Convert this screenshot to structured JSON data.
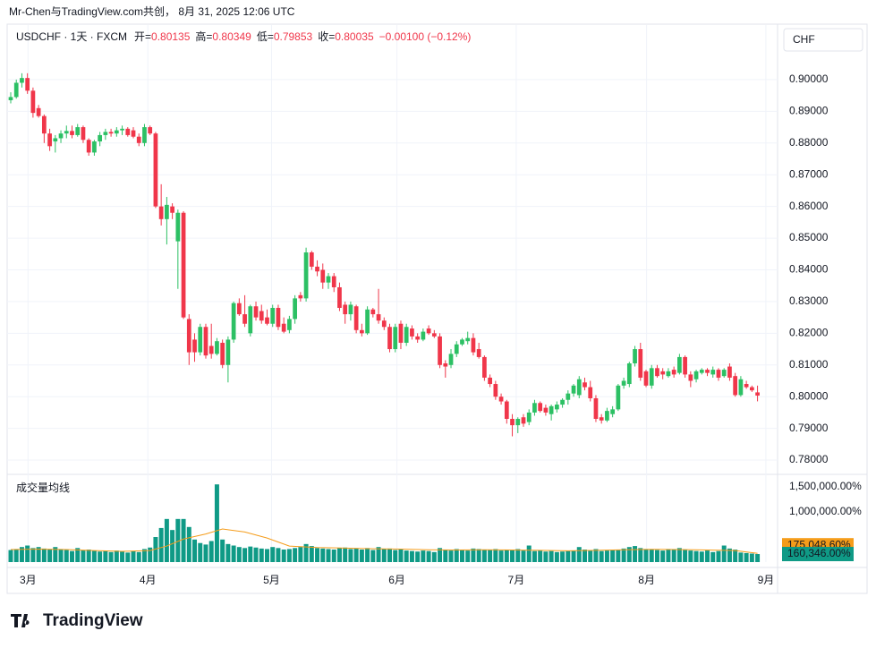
{
  "header": {
    "attribution": "Mr-Chen与TradingView.com共创， 8月 31, 2025 12:06 UTC",
    "logo": "TradingView"
  },
  "chart_data": {
    "type": "candlestick",
    "symbol": "USDCHF · 1天 · FXCM",
    "ohlc_labels": [
      "开=",
      "高=",
      "低=",
      "收="
    ],
    "change": "−0.00100 (−0.12%)",
    "currency": "CHF",
    "volume_title": "成交量均线",
    "up_color": "#2cc064",
    "down_color": "#f0364a",
    "volume_color": "#0f9a86",
    "ma_color": "#f59c1a",
    "ylim": [
      0.7755,
      0.9172
    ],
    "yticks": [
      {
        "value": 0.9,
        "label": "0.90000"
      },
      {
        "value": 0.89,
        "label": "0.89000"
      },
      {
        "value": 0.88,
        "label": "0.88000"
      },
      {
        "value": 0.87,
        "label": "0.87000"
      },
      {
        "value": 0.86,
        "label": "0.86000"
      },
      {
        "value": 0.85,
        "label": "0.85000"
      },
      {
        "value": 0.84,
        "label": "0.84000"
      },
      {
        "value": 0.83,
        "label": "0.83000"
      },
      {
        "value": 0.82,
        "label": "0.82000"
      },
      {
        "value": 0.81,
        "label": "0.81000"
      },
      {
        "value": 0.8,
        "label": "0.80000"
      },
      {
        "value": 0.79,
        "label": "0.79000"
      },
      {
        "value": 0.78,
        "label": "0.78000"
      }
    ],
    "xlim": [
      -0.64,
      137.6
    ],
    "xticks": [
      {
        "value": 3.1,
        "label": "3月"
      },
      {
        "value": 24.6,
        "label": "4月"
      },
      {
        "value": 46.8,
        "label": "5月"
      },
      {
        "value": 69.3,
        "label": "6月"
      },
      {
        "value": 90.7,
        "label": "7月"
      },
      {
        "value": 114.1,
        "label": "8月"
      },
      {
        "value": 135.5,
        "label": "9月"
      }
    ],
    "y2lim": [
      0,
      1750000
    ],
    "y2ticks": [
      {
        "value": 1500000,
        "label": "1,500,000.00%"
      },
      {
        "value": 1000000,
        "label": "1,000,000.00%"
      }
    ],
    "series": [
      {
        "name": "USDCHF",
        "values": [
          [
            0.8935,
            0.896,
            0.8925,
            0.8945
          ],
          [
            0.8945,
            0.9,
            0.894,
            0.899
          ],
          [
            0.899,
            0.902,
            0.8975,
            0.9005
          ],
          [
            0.9005,
            0.902,
            0.8955,
            0.8965
          ],
          [
            0.8965,
            0.8975,
            0.888,
            0.8895
          ],
          [
            0.891,
            0.892,
            0.888,
            0.8885
          ],
          [
            0.8885,
            0.889,
            0.88,
            0.883
          ],
          [
            0.883,
            0.8845,
            0.8775,
            0.879
          ],
          [
            0.8805,
            0.8825,
            0.877,
            0.8815
          ],
          [
            0.8815,
            0.884,
            0.88,
            0.883
          ],
          [
            0.883,
            0.8855,
            0.8815,
            0.8838
          ],
          [
            0.8838,
            0.8855,
            0.8815,
            0.8825
          ],
          [
            0.8825,
            0.886,
            0.882,
            0.885
          ],
          [
            0.885,
            0.8855,
            0.88,
            0.881
          ],
          [
            0.881,
            0.8815,
            0.876,
            0.877
          ],
          [
            0.877,
            0.881,
            0.876,
            0.8805
          ],
          [
            0.8805,
            0.8835,
            0.879,
            0.8825
          ],
          [
            0.8825,
            0.8845,
            0.881,
            0.8835
          ],
          [
            0.8835,
            0.8845,
            0.882,
            0.883
          ],
          [
            0.883,
            0.885,
            0.882,
            0.884
          ],
          [
            0.884,
            0.8855,
            0.8825,
            0.8845
          ],
          [
            0.8845,
            0.885,
            0.882,
            0.8825
          ],
          [
            0.884,
            0.885,
            0.8815,
            0.882
          ],
          [
            0.882,
            0.883,
            0.879,
            0.88
          ],
          [
            0.88,
            0.886,
            0.879,
            0.885
          ],
          [
            0.885,
            0.8855,
            0.8825,
            0.883
          ],
          [
            0.883,
            0.8835,
            0.8595,
            0.86
          ],
          [
            0.86,
            0.867,
            0.854,
            0.856
          ],
          [
            0.856,
            0.863,
            0.848,
            0.8605
          ],
          [
            0.86,
            0.861,
            0.856,
            0.858
          ],
          [
            0.849,
            0.859,
            0.834,
            0.858
          ],
          [
            0.858,
            0.8585,
            0.8245,
            0.825
          ],
          [
            0.8245,
            0.826,
            0.81,
            0.814
          ],
          [
            0.818,
            0.82,
            0.811,
            0.814
          ],
          [
            0.814,
            0.823,
            0.813,
            0.822
          ],
          [
            0.822,
            0.823,
            0.812,
            0.813
          ],
          [
            0.816,
            0.823,
            0.812,
            0.8135
          ],
          [
            0.8135,
            0.8185,
            0.813,
            0.8175
          ],
          [
            0.817,
            0.818,
            0.809,
            0.81
          ],
          [
            0.81,
            0.819,
            0.8045,
            0.818
          ],
          [
            0.818,
            0.83,
            0.817,
            0.8295
          ],
          [
            0.8295,
            0.831,
            0.8255,
            0.826
          ],
          [
            0.826,
            0.832,
            0.822,
            0.823
          ],
          [
            0.82,
            0.829,
            0.819,
            0.8285
          ],
          [
            0.8285,
            0.83,
            0.824,
            0.825
          ],
          [
            0.827,
            0.829,
            0.823,
            0.824
          ],
          [
            0.825,
            0.8275,
            0.8225,
            0.823
          ],
          [
            0.823,
            0.829,
            0.822,
            0.828
          ],
          [
            0.828,
            0.829,
            0.821,
            0.822
          ],
          [
            0.823,
            0.825,
            0.82,
            0.8205
          ],
          [
            0.821,
            0.8255,
            0.82,
            0.8245
          ],
          [
            0.8245,
            0.832,
            0.823,
            0.831
          ],
          [
            0.832,
            0.833,
            0.83,
            0.831
          ],
          [
            0.831,
            0.847,
            0.83,
            0.8455
          ],
          [
            0.8455,
            0.846,
            0.84,
            0.841
          ],
          [
            0.841,
            0.843,
            0.838,
            0.8395
          ],
          [
            0.84,
            0.842,
            0.834,
            0.836
          ],
          [
            0.836,
            0.839,
            0.834,
            0.838
          ],
          [
            0.838,
            0.839,
            0.833,
            0.8345
          ],
          [
            0.8345,
            0.836,
            0.827,
            0.828
          ],
          [
            0.829,
            0.83,
            0.823,
            0.826
          ],
          [
            0.826,
            0.83,
            0.824,
            0.829
          ],
          [
            0.8285,
            0.829,
            0.82,
            0.821
          ],
          [
            0.821,
            0.823,
            0.819,
            0.82
          ],
          [
            0.82,
            0.8285,
            0.8195,
            0.8275
          ],
          [
            0.8275,
            0.828,
            0.825,
            0.826
          ],
          [
            0.826,
            0.834,
            0.823,
            0.824
          ],
          [
            0.824,
            0.825,
            0.821,
            0.822
          ],
          [
            0.822,
            0.823,
            0.814,
            0.815
          ],
          [
            0.815,
            0.823,
            0.814,
            0.822
          ],
          [
            0.823,
            0.824,
            0.815,
            0.817
          ],
          [
            0.817,
            0.823,
            0.816,
            0.822
          ],
          [
            0.8215,
            0.8225,
            0.818,
            0.819
          ],
          [
            0.819,
            0.82,
            0.817,
            0.818
          ],
          [
            0.818,
            0.8215,
            0.8175,
            0.8205
          ],
          [
            0.8215,
            0.8225,
            0.8195,
            0.82
          ],
          [
            0.82,
            0.821,
            0.8185,
            0.819
          ],
          [
            0.819,
            0.82,
            0.809,
            0.81
          ],
          [
            0.8105,
            0.8115,
            0.806,
            0.8095
          ],
          [
            0.81,
            0.815,
            0.809,
            0.8135
          ],
          [
            0.8135,
            0.8175,
            0.8125,
            0.8165
          ],
          [
            0.8165,
            0.8185,
            0.816,
            0.818
          ],
          [
            0.8175,
            0.8205,
            0.8165,
            0.8185
          ],
          [
            0.8185,
            0.82,
            0.813,
            0.814
          ],
          [
            0.815,
            0.817,
            0.812,
            0.8125
          ],
          [
            0.8125,
            0.813,
            0.805,
            0.806
          ],
          [
            0.806,
            0.807,
            0.803,
            0.804
          ],
          [
            0.804,
            0.805,
            0.799,
            0.8
          ],
          [
            0.8,
            0.801,
            0.7975,
            0.7985
          ],
          [
            0.7985,
            0.799,
            0.7915,
            0.793
          ],
          [
            0.793,
            0.7945,
            0.7875,
            0.791
          ],
          [
            0.791,
            0.7935,
            0.7885,
            0.793
          ],
          [
            0.7935,
            0.7945,
            0.7905,
            0.7915
          ],
          [
            0.792,
            0.796,
            0.791,
            0.795
          ],
          [
            0.795,
            0.799,
            0.794,
            0.798
          ],
          [
            0.798,
            0.7985,
            0.795,
            0.7955
          ],
          [
            0.7965,
            0.7975,
            0.794,
            0.795
          ],
          [
            0.7945,
            0.7975,
            0.7925,
            0.797
          ],
          [
            0.796,
            0.7985,
            0.795,
            0.7975
          ],
          [
            0.7975,
            0.7995,
            0.7965,
            0.799
          ],
          [
            0.799,
            0.802,
            0.7975,
            0.801
          ],
          [
            0.801,
            0.804,
            0.8,
            0.8035
          ],
          [
            0.8005,
            0.8065,
            0.7995,
            0.8055
          ],
          [
            0.8045,
            0.806,
            0.802,
            0.803
          ],
          [
            0.803,
            0.805,
            0.7985,
            0.7995
          ],
          [
            0.7995,
            0.8005,
            0.792,
            0.793
          ],
          [
            0.7935,
            0.7945,
            0.7915,
            0.7925
          ],
          [
            0.7925,
            0.7965,
            0.792,
            0.7955
          ],
          [
            0.7945,
            0.797,
            0.7935,
            0.796
          ],
          [
            0.796,
            0.804,
            0.7955,
            0.8035
          ],
          [
            0.8035,
            0.806,
            0.8025,
            0.805
          ],
          [
            0.804,
            0.811,
            0.803,
            0.8105
          ],
          [
            0.8105,
            0.816,
            0.8095,
            0.815
          ],
          [
            0.815,
            0.817,
            0.805,
            0.806
          ],
          [
            0.808,
            0.8085,
            0.803,
            0.8035
          ],
          [
            0.8035,
            0.81,
            0.8025,
            0.809
          ],
          [
            0.809,
            0.81,
            0.806,
            0.8065
          ],
          [
            0.808,
            0.809,
            0.8055,
            0.807
          ],
          [
            0.8065,
            0.809,
            0.806,
            0.808
          ],
          [
            0.8085,
            0.8095,
            0.806,
            0.807
          ],
          [
            0.8075,
            0.8135,
            0.807,
            0.8125
          ],
          [
            0.8125,
            0.813,
            0.806,
            0.807
          ],
          [
            0.807,
            0.808,
            0.803,
            0.805
          ],
          [
            0.8055,
            0.8085,
            0.8045,
            0.808
          ],
          [
            0.8075,
            0.809,
            0.807,
            0.8085
          ],
          [
            0.8085,
            0.809,
            0.8065,
            0.8075
          ],
          [
            0.807,
            0.8095,
            0.806,
            0.8085
          ],
          [
            0.8085,
            0.809,
            0.805,
            0.806
          ],
          [
            0.8065,
            0.809,
            0.806,
            0.8085
          ],
          [
            0.8095,
            0.8105,
            0.805,
            0.806
          ],
          [
            0.8065,
            0.8075,
            0.8,
            0.8005
          ],
          [
            0.8005,
            0.8065,
            0.8,
            0.8055
          ],
          [
            0.804,
            0.805,
            0.8025,
            0.803
          ],
          [
            0.803,
            0.8035,
            0.8015,
            0.802
          ],
          [
            0.80135,
            0.80349,
            0.79853,
            0.80035
          ]
        ]
      },
      {
        "name": "volume",
        "axis": "y2",
        "last_label": "160,346.00%",
        "values": [
          240000,
          260000,
          300000,
          330000,
          280000,
          300000,
          270000,
          250000,
          300000,
          260000,
          240000,
          220000,
          280000,
          240000,
          250000,
          230000,
          210000,
          220000,
          200000,
          230000,
          210000,
          190000,
          220000,
          200000,
          260000,
          290000,
          500000,
          680000,
          860000,
          640000,
          860000,
          860000,
          700000,
          450000,
          380000,
          350000,
          420000,
          1550000,
          450000,
          360000,
          330000,
          300000,
          280000,
          310000,
          290000,
          270000,
          260000,
          300000,
          280000,
          250000,
          260000,
          280000,
          300000,
          360000,
          320000,
          280000,
          270000,
          260000,
          250000,
          280000,
          290000,
          260000,
          270000,
          250000,
          280000,
          240000,
          300000,
          260000,
          270000,
          240000,
          250000,
          230000,
          220000,
          210000,
          230000,
          220000,
          200000,
          280000,
          250000,
          230000,
          260000,
          240000,
          230000,
          270000,
          260000,
          250000,
          240000,
          260000,
          230000,
          250000,
          240000,
          260000,
          230000,
          330000,
          220000,
          230000,
          210000,
          220000,
          200000,
          210000,
          220000,
          230000,
          300000,
          250000,
          240000,
          260000,
          220000,
          230000,
          240000,
          250000,
          270000,
          300000,
          320000,
          280000,
          260000,
          250000,
          240000,
          230000,
          260000,
          250000,
          280000,
          240000,
          230000,
          220000,
          210000,
          230000,
          200000,
          220000,
          330000,
          270000,
          250000,
          190000,
          180000,
          170000,
          160346
        ]
      },
      {
        "name": "ma",
        "axis": "y2",
        "last_label": "175,048.60%",
        "x": [
          0,
          5,
          10,
          15,
          20,
          25,
          28,
          31,
          35,
          38,
          42,
          46,
          50,
          55,
          60,
          65,
          70,
          75,
          80,
          85,
          90,
          95,
          100,
          105,
          110,
          115,
          120,
          125,
          130,
          134
        ],
        "values": [
          250000,
          260000,
          250000,
          230000,
          215000,
          230000,
          320000,
          460000,
          560000,
          660000,
          600000,
          480000,
          320000,
          290000,
          280000,
          265000,
          260000,
          245000,
          240000,
          245000,
          240000,
          235000,
          225000,
          235000,
          245000,
          255000,
          250000,
          240000,
          230000,
          175048.6
        ]
      }
    ]
  }
}
